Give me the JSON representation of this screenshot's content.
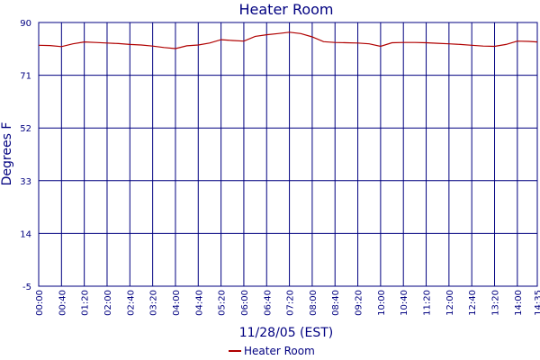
{
  "chart_data": {
    "type": "line",
    "title": "Heater Room",
    "xlabel": "11/28/05 (EST)",
    "ylabel": "Degrees F",
    "ylim": [
      -5,
      90
    ],
    "yticks": [
      "90",
      "71",
      "52",
      "33",
      "14",
      "-5"
    ],
    "xticks": [
      "00:00",
      "00:40",
      "01:20",
      "02:00",
      "02:40",
      "03:20",
      "04:00",
      "04:40",
      "05:20",
      "06:00",
      "06:40",
      "07:20",
      "08:00",
      "08:40",
      "09:20",
      "10:00",
      "10:40",
      "11:20",
      "12:00",
      "12:40",
      "13:20",
      "14:00",
      "14:35"
    ],
    "grid": true,
    "legend_position": "bottom",
    "colors": {
      "series": "#b00000",
      "axes": "#000080",
      "grid": "#000080"
    },
    "series": [
      {
        "name": "Heater Room",
        "x": [
          "00:00",
          "00:20",
          "00:40",
          "01:00",
          "01:20",
          "01:40",
          "02:00",
          "02:20",
          "02:40",
          "03:00",
          "03:20",
          "03:40",
          "04:00",
          "04:20",
          "04:40",
          "05:00",
          "05:20",
          "05:40",
          "06:00",
          "06:20",
          "06:40",
          "07:00",
          "07:20",
          "07:40",
          "08:00",
          "08:20",
          "08:40",
          "09:00",
          "09:20",
          "09:40",
          "10:00",
          "10:20",
          "10:40",
          "11:00",
          "11:20",
          "11:40",
          "12:00",
          "12:20",
          "12:40",
          "13:00",
          "13:20",
          "13:40",
          "14:00",
          "14:20",
          "14:35"
        ],
        "values": [
          81.8,
          81.7,
          81.3,
          82.3,
          83.0,
          82.8,
          82.6,
          82.4,
          82.1,
          81.9,
          81.5,
          81.0,
          80.6,
          81.6,
          81.9,
          82.6,
          83.8,
          83.5,
          83.3,
          85.0,
          85.6,
          86.0,
          86.5,
          86.0,
          84.8,
          83.1,
          82.8,
          82.7,
          82.6,
          82.3,
          81.4,
          82.7,
          82.8,
          82.8,
          82.7,
          82.5,
          82.3,
          82.1,
          81.8,
          81.5,
          81.4,
          82.1,
          83.3,
          83.2,
          83.0
        ]
      }
    ]
  }
}
